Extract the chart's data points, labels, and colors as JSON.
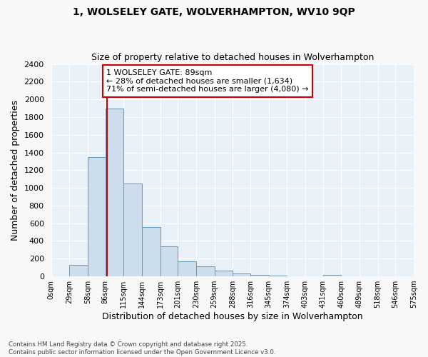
{
  "title1": "1, WOLSELEY GATE, WOLVERHAMPTON, WV10 9QP",
  "title2": "Size of property relative to detached houses in Wolverhampton",
  "xlabel": "Distribution of detached houses by size in Wolverhampton",
  "ylabel": "Number of detached properties",
  "bin_edges": [
    0,
    29,
    58,
    86,
    115,
    144,
    173,
    201,
    230,
    259,
    288,
    316,
    345,
    374,
    403,
    431,
    460,
    489,
    518,
    546,
    575
  ],
  "bar_heights": [
    0,
    130,
    1350,
    1900,
    1050,
    560,
    340,
    170,
    110,
    65,
    35,
    20,
    5,
    0,
    0,
    15,
    0,
    0,
    0,
    0
  ],
  "bar_color": "#ccdded",
  "bar_edge_color": "#6699bb",
  "property_size": 89,
  "vline_color": "#cc0000",
  "annotation_line1": "1 WOLSELEY GATE: 89sqm",
  "annotation_line2": "← 28% of detached houses are smaller (1,634)",
  "annotation_line3": "71% of semi-detached houses are larger (4,080) →",
  "annotation_box_color": "#ffffff",
  "annotation_box_edge_color": "#cc0000",
  "ylim": [
    0,
    2400
  ],
  "ytick_interval": 200,
  "bg_color": "#e8f0f8",
  "footer_text": "Contains HM Land Registry data © Crown copyright and database right 2025.\nContains public sector information licensed under the Open Government Licence v3.0.",
  "grid_color": "#ffffff",
  "tick_labels": [
    "0sqm",
    "29sqm",
    "58sqm",
    "86sqm",
    "115sqm",
    "144sqm",
    "173sqm",
    "201sqm",
    "230sqm",
    "259sqm",
    "288sqm",
    "316sqm",
    "345sqm",
    "374sqm",
    "403sqm",
    "431sqm",
    "460sqm",
    "489sqm",
    "518sqm",
    "546sqm",
    "575sqm"
  ]
}
